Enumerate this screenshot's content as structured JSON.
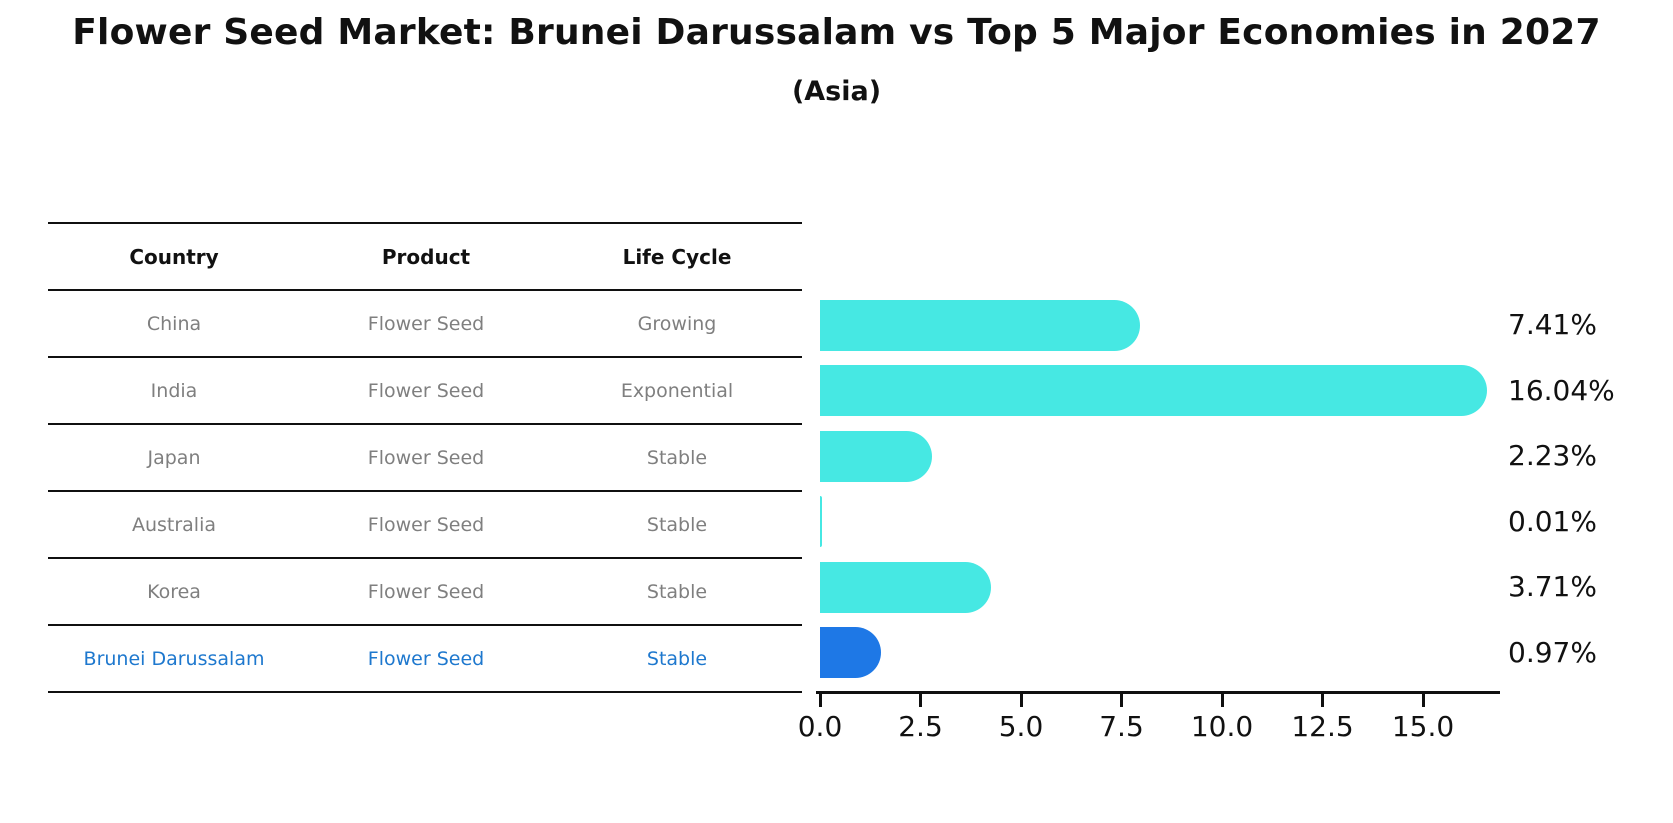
{
  "title": "Flower Seed Market: Brunei Darussalam vs Top 5 Major Economies in 2027",
  "subtitle": "(Asia)",
  "table": {
    "headers": [
      "Country",
      "Product",
      "Life Cycle"
    ]
  },
  "chart_data": {
    "type": "bar",
    "orientation": "horizontal",
    "title": "Flower Seed Market: Brunei Darussalam vs Top 5 Major Economies in 2027",
    "subtitle": "(Asia)",
    "categories": [
      "China",
      "India",
      "Japan",
      "Australia",
      "Korea",
      "Brunei Darussalam"
    ],
    "values": [
      7.41,
      16.04,
      2.23,
      0.01,
      3.71,
      0.97
    ],
    "value_labels": [
      "7.41%",
      "16.04%",
      "2.23%",
      "0.01%",
      "3.71%",
      "0.97%"
    ],
    "rows": [
      {
        "country": "China",
        "product": "Flower Seed",
        "life_cycle": "Growing",
        "value": 7.41,
        "value_label": "7.41%",
        "highlight": false
      },
      {
        "country": "India",
        "product": "Flower Seed",
        "life_cycle": "Exponential",
        "value": 16.04,
        "value_label": "16.04%",
        "highlight": false
      },
      {
        "country": "Japan",
        "product": "Flower Seed",
        "life_cycle": "Stable",
        "value": 2.23,
        "value_label": "2.23%",
        "highlight": false
      },
      {
        "country": "Australia",
        "product": "Flower Seed",
        "life_cycle": "Stable",
        "value": 0.01,
        "value_label": "0.01%",
        "highlight": false
      },
      {
        "country": "Korea",
        "product": "Flower Seed",
        "life_cycle": "Stable",
        "value": 3.71,
        "value_label": "3.71%",
        "highlight": false
      },
      {
        "country": "Brunei Darussalam",
        "product": "Flower Seed",
        "life_cycle": "Stable",
        "value": 0.97,
        "value_label": "0.97%",
        "highlight": true
      }
    ],
    "x_tick_labels": [
      "0.0",
      "2.5",
      "5.0",
      "7.5",
      "10.0",
      "12.5",
      "15.0"
    ],
    "x_tick_values": [
      0,
      2.5,
      5,
      7.5,
      10,
      12.5,
      15
    ],
    "xlim": [
      0,
      16.9
    ],
    "grid": false,
    "legend": "none",
    "colors": {
      "bar": "#46E8E3",
      "highlight_bar": "#1E78E6",
      "highlight_text": "#1E78CE",
      "row_text": "#7F7F7F",
      "header_text": "#111111",
      "axis": "#101010"
    }
  }
}
